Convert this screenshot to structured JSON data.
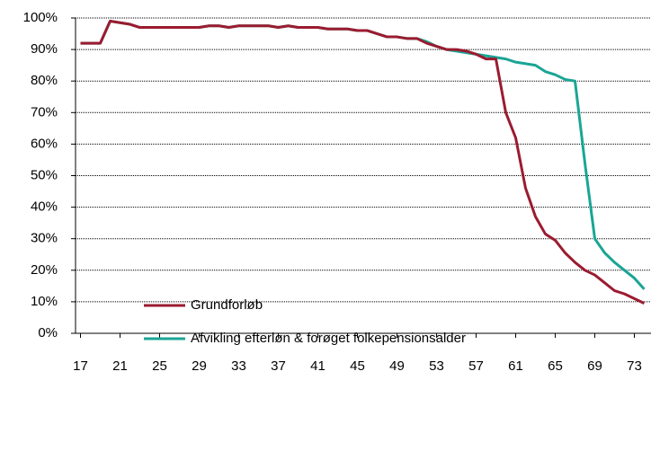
{
  "chart_data": {
    "type": "line",
    "x": [
      17,
      18,
      19,
      20,
      21,
      22,
      23,
      24,
      25,
      26,
      27,
      28,
      29,
      30,
      31,
      32,
      33,
      34,
      35,
      36,
      37,
      38,
      39,
      40,
      41,
      42,
      43,
      44,
      45,
      46,
      47,
      48,
      49,
      50,
      51,
      52,
      53,
      54,
      55,
      56,
      57,
      58,
      59,
      60,
      61,
      62,
      63,
      64,
      65,
      66,
      67,
      68,
      69,
      70,
      71,
      72,
      73,
      74
    ],
    "series": [
      {
        "name": "Grundforløb",
        "color": "#9b1b30",
        "values": [
          92,
          92,
          92,
          99,
          98.5,
          98,
          97,
          97,
          97,
          97,
          97,
          97,
          97,
          97.5,
          97.5,
          97,
          97.5,
          97.5,
          97.5,
          97.5,
          97,
          97.5,
          97,
          97,
          97,
          96.5,
          96.5,
          96.5,
          96,
          96,
          95,
          94,
          94,
          93.5,
          93.5,
          92,
          91,
          90,
          90,
          89.5,
          88.5,
          87,
          87,
          70,
          62,
          46,
          37,
          31.5,
          29.5,
          25.5,
          22.5,
          20,
          18.5,
          16,
          13.5,
          12.5,
          11,
          9.5
        ]
      },
      {
        "name": "Afvikling efterløn & forøget folkepensionsalder",
        "color": "#1aa595",
        "values": [
          92,
          92,
          92,
          99,
          98.5,
          98,
          97,
          97,
          97,
          97,
          97,
          97,
          97,
          97.5,
          97.5,
          97,
          97.5,
          97.5,
          97.5,
          97.5,
          97,
          97.5,
          97,
          97,
          97,
          96.5,
          96.5,
          96.5,
          96,
          96,
          95,
          94,
          94,
          93.5,
          93.5,
          92.5,
          91,
          90,
          89.5,
          89,
          88.5,
          88,
          87.5,
          87,
          86,
          85.5,
          85,
          83,
          82,
          80.5,
          80,
          54,
          30,
          25.5,
          22.5,
          20,
          17.5,
          14
        ]
      }
    ],
    "xlim": [
      16.5,
      74.5
    ],
    "xticks": [
      17,
      21,
      25,
      29,
      33,
      37,
      41,
      45,
      49,
      53,
      57,
      61,
      65,
      69,
      73
    ],
    "ylim": [
      0,
      100
    ],
    "yticks": [
      {
        "value": 0,
        "label": "0%"
      },
      {
        "value": 10,
        "label": "10%"
      },
      {
        "value": 20,
        "label": "20%"
      },
      {
        "value": 30,
        "label": "30%"
      },
      {
        "value": 40,
        "label": "40%"
      },
      {
        "value": 50,
        "label": "50%"
      },
      {
        "value": 60,
        "label": "60%"
      },
      {
        "value": 70,
        "label": "70%"
      },
      {
        "value": 80,
        "label": "80%"
      },
      {
        "value": 90,
        "label": "90%"
      },
      {
        "value": 100,
        "label": "100%"
      }
    ],
    "grid": true
  }
}
